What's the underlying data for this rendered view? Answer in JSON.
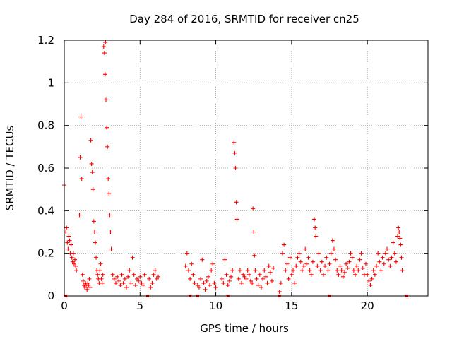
{
  "colors": {
    "series": "#ff0000",
    "axes": "#000000",
    "grid": "#a0a0a0",
    "background": "#ffffff"
  },
  "chart_data": {
    "type": "scatter",
    "title": "Day 284 of 2016, SRMTID for receiver cn25",
    "xlabel": "GPS time / hours",
    "ylabel": "SRMTID / TECUs",
    "xlim": [
      0,
      24
    ],
    "ylim": [
      0,
      1.2
    ],
    "xticks": [
      0,
      5,
      10,
      15,
      20
    ],
    "xtick_labels": [
      "0",
      "5",
      "10",
      "15",
      "20"
    ],
    "yticks": [
      0,
      0.2,
      0.4,
      0.6,
      0.8,
      1.0,
      1.2
    ],
    "ytick_labels": [
      "0",
      "0.2",
      "0.4",
      "0.6",
      "0.8",
      "1",
      "1.2"
    ],
    "grid": true,
    "marker": "+",
    "series": [
      {
        "name": "SRMTID",
        "x": [
          0.0,
          0.1,
          0.15,
          0.2,
          0.25,
          0.3,
          0.35,
          0.4,
          0.45,
          0.5,
          0.55,
          0.6,
          0.65,
          0.7,
          0.75,
          0.8,
          1.0,
          1.05,
          1.1,
          1.15,
          1.2,
          1.25,
          1.3,
          1.35,
          1.4,
          1.45,
          1.5,
          1.55,
          1.6,
          1.65,
          1.7,
          1.75,
          1.8,
          1.85,
          1.9,
          1.95,
          2.0,
          2.05,
          2.1,
          2.15,
          2.2,
          2.25,
          2.3,
          2.35,
          2.4,
          2.45,
          2.5,
          2.55,
          2.6,
          2.65,
          2.7,
          2.72,
          2.75,
          2.8,
          2.85,
          2.9,
          2.95,
          3.0,
          3.05,
          3.1,
          3.2,
          3.3,
          3.4,
          3.5,
          3.6,
          3.7,
          3.8,
          3.9,
          4.0,
          4.1,
          4.2,
          4.3,
          4.4,
          4.5,
          4.6,
          4.7,
          4.8,
          4.9,
          5.0,
          5.1,
          5.2,
          5.3,
          5.6,
          5.7,
          5.8,
          5.9,
          6.0,
          6.1,
          6.2,
          8.0,
          8.1,
          8.2,
          8.3,
          8.4,
          8.5,
          8.6,
          8.8,
          8.9,
          9.0,
          9.1,
          9.2,
          9.3,
          9.4,
          9.5,
          9.6,
          9.7,
          9.8,
          9.9,
          10.0,
          10.4,
          10.5,
          10.6,
          10.7,
          10.8,
          10.9,
          11.0,
          11.1,
          11.2,
          11.25,
          11.3,
          11.35,
          11.4,
          11.5,
          11.6,
          11.7,
          11.8,
          11.9,
          12.0,
          12.1,
          12.2,
          12.3,
          12.4,
          12.45,
          12.5,
          12.55,
          12.6,
          12.7,
          12.8,
          12.9,
          13.0,
          13.1,
          13.2,
          13.3,
          13.4,
          13.5,
          13.6,
          13.7,
          13.8,
          14.2,
          14.3,
          14.4,
          14.5,
          14.6,
          14.7,
          14.8,
          14.9,
          15.0,
          15.1,
          15.2,
          15.3,
          15.4,
          15.5,
          15.6,
          15.7,
          15.8,
          15.9,
          16.0,
          16.1,
          16.2,
          16.3,
          16.4,
          16.5,
          16.55,
          16.6,
          16.7,
          16.8,
          16.9,
          17.0,
          17.1,
          17.2,
          17.3,
          17.4,
          17.5,
          17.6,
          17.7,
          17.8,
          17.9,
          18.0,
          18.1,
          18.2,
          18.3,
          18.4,
          18.5,
          18.6,
          18.7,
          18.8,
          18.9,
          19.0,
          19.1,
          19.2,
          19.3,
          19.4,
          19.5,
          19.6,
          19.7,
          19.8,
          19.9,
          20.0,
          20.1,
          20.2,
          20.3,
          20.4,
          20.5,
          20.6,
          20.7,
          20.8,
          20.9,
          21.0,
          21.1,
          21.2,
          21.3,
          21.4,
          21.5,
          21.6,
          21.7,
          21.8,
          21.9,
          22.0,
          22.05,
          22.1,
          22.15,
          22.2,
          22.25,
          22.3
        ],
        "y": [
          0.52,
          0.3,
          0.32,
          0.25,
          0.22,
          0.28,
          0.26,
          0.2,
          0.24,
          0.18,
          0.16,
          0.2,
          0.15,
          0.17,
          0.14,
          0.12,
          0.38,
          0.65,
          0.84,
          0.55,
          0.1,
          0.07,
          0.05,
          0.04,
          0.06,
          0.05,
          0.03,
          0.06,
          0.05,
          0.08,
          0.04,
          0.73,
          0.62,
          0.58,
          0.5,
          0.35,
          0.3,
          0.25,
          0.18,
          0.12,
          0.1,
          0.08,
          0.06,
          0.12,
          0.15,
          0.08,
          0.06,
          0.1,
          1.17,
          1.14,
          1.04,
          1.19,
          0.92,
          0.79,
          0.7,
          0.55,
          0.48,
          0.38,
          0.3,
          0.22,
          0.1,
          0.08,
          0.06,
          0.09,
          0.07,
          0.05,
          0.1,
          0.06,
          0.08,
          0.04,
          0.09,
          0.12,
          0.06,
          0.18,
          0.1,
          0.05,
          0.08,
          0.07,
          0.09,
          0.06,
          0.05,
          0.1,
          0.08,
          0.04,
          0.06,
          0.1,
          0.12,
          0.08,
          0.09,
          0.14,
          0.2,
          0.12,
          0.08,
          0.15,
          0.1,
          0.06,
          0.05,
          0.04,
          0.08,
          0.17,
          0.06,
          0.03,
          0.07,
          0.09,
          0.05,
          0.12,
          0.15,
          0.06,
          0.04,
          0.08,
          0.06,
          0.17,
          0.1,
          0.05,
          0.07,
          0.09,
          0.12,
          0.72,
          0.67,
          0.6,
          0.44,
          0.36,
          0.08,
          0.12,
          0.06,
          0.1,
          0.09,
          0.08,
          0.12,
          0.1,
          0.07,
          0.06,
          0.41,
          0.3,
          0.19,
          0.12,
          0.08,
          0.05,
          0.1,
          0.04,
          0.08,
          0.12,
          0.09,
          0.06,
          0.14,
          0.11,
          0.07,
          0.13,
          0.02,
          0.06,
          0.2,
          0.24,
          0.12,
          0.15,
          0.08,
          0.18,
          0.1,
          0.12,
          0.06,
          0.14,
          0.18,
          0.2,
          0.16,
          0.12,
          0.14,
          0.22,
          0.15,
          0.18,
          0.12,
          0.1,
          0.16,
          0.36,
          0.32,
          0.28,
          0.14,
          0.2,
          0.12,
          0.16,
          0.1,
          0.14,
          0.18,
          0.12,
          0.15,
          0.2,
          0.26,
          0.22,
          0.17,
          0.12,
          0.1,
          0.14,
          0.12,
          0.09,
          0.11,
          0.15,
          0.13,
          0.16,
          0.2,
          0.18,
          0.12,
          0.1,
          0.14,
          0.12,
          0.17,
          0.2,
          0.13,
          0.1,
          0.15,
          0.1,
          0.07,
          0.05,
          0.08,
          0.12,
          0.1,
          0.14,
          0.2,
          0.16,
          0.12,
          0.18,
          0.15,
          0.2,
          0.22,
          0.17,
          0.14,
          0.18,
          0.25,
          0.2,
          0.16,
          0.28,
          0.32,
          0.3,
          0.27,
          0.24,
          0.18,
          0.12
        ]
      }
    ],
    "missing_data_markers_x": [
      0.1,
      5.5,
      8.3,
      8.8,
      10.8,
      14.2,
      17.5,
      22.6
    ]
  }
}
